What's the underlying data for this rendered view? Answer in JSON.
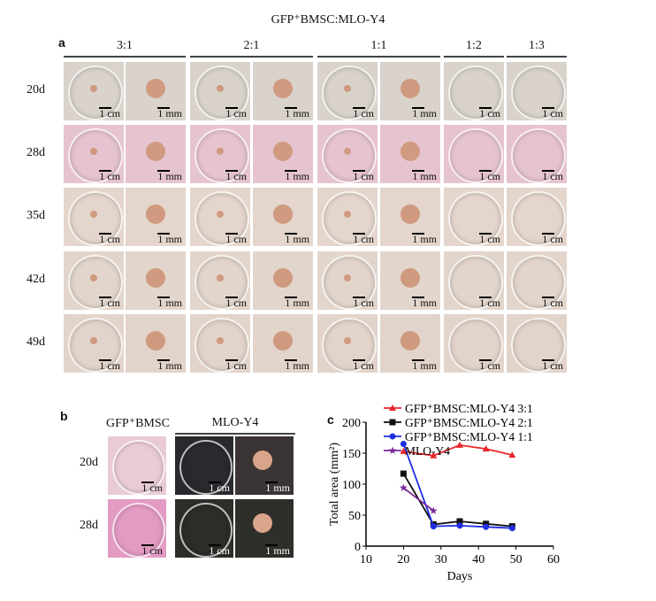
{
  "figure_title": "GFP⁺BMSC:MLO-Y4",
  "panel_a": {
    "label": "a",
    "groups": [
      "3:1",
      "2:1",
      "1:1",
      "1:2",
      "1:3"
    ],
    "rows": [
      {
        "label": "20d",
        "tone": "#d9d3cc"
      },
      {
        "label": "28d",
        "tone": "#e6c4cf"
      },
      {
        "label": "35d",
        "tone": "#e4d6cc"
      },
      {
        "label": "42d",
        "tone": "#e2d5cb"
      },
      {
        "label": "49d",
        "tone": "#e2d4ca"
      }
    ],
    "scales": [
      "1 cm",
      "1 mm",
      "1 cm",
      "1 mm",
      "1 cm",
      "1 mm",
      "1 cm",
      "1 cm"
    ]
  },
  "panel_b": {
    "label": "b",
    "col_labels": [
      "GFP⁺BMSC",
      "MLO-Y4"
    ],
    "rows": [
      {
        "label": "20d"
      },
      {
        "label": "28d"
      }
    ],
    "scales": [
      "1 cm",
      "1 cm",
      "1 mm"
    ]
  },
  "panel_c": {
    "label": "c"
  },
  "chart_data": {
    "type": "line",
    "xlabel": "Days",
    "ylabel": "Total area (mm²)",
    "xlim": [
      10,
      60
    ],
    "ylim": [
      0,
      200
    ],
    "xticks": [
      "10",
      "20",
      "30",
      "40",
      "50",
      "60"
    ],
    "yticks": [
      "0",
      "50",
      "100",
      "150",
      "200"
    ],
    "legend_position": "top",
    "series": [
      {
        "name": "GFP⁺BMSC:MLO-Y4 3:1",
        "color": "#e8262a",
        "marker": "triangle",
        "x": [
          20,
          28,
          35,
          42,
          49
        ],
        "y": [
          153,
          146,
          163,
          157,
          147
        ]
      },
      {
        "name": "GFP⁺BMSC:MLO-Y4 2:1",
        "color": "#111111",
        "marker": "square",
        "x": [
          20,
          28,
          35,
          42,
          49
        ],
        "y": [
          117,
          35,
          40,
          36,
          32
        ]
      },
      {
        "name": "GFP⁺BMSC:MLO-Y4 1:1",
        "color": "#1f2ee0",
        "marker": "circle",
        "x": [
          20,
          28,
          35,
          42,
          49
        ],
        "y": [
          165,
          32,
          33,
          31,
          29
        ]
      },
      {
        "name": "MLO-Y4",
        "color": "#7a2a9a",
        "marker": "star",
        "x": [
          20,
          28
        ],
        "y": [
          94,
          57
        ]
      }
    ]
  }
}
